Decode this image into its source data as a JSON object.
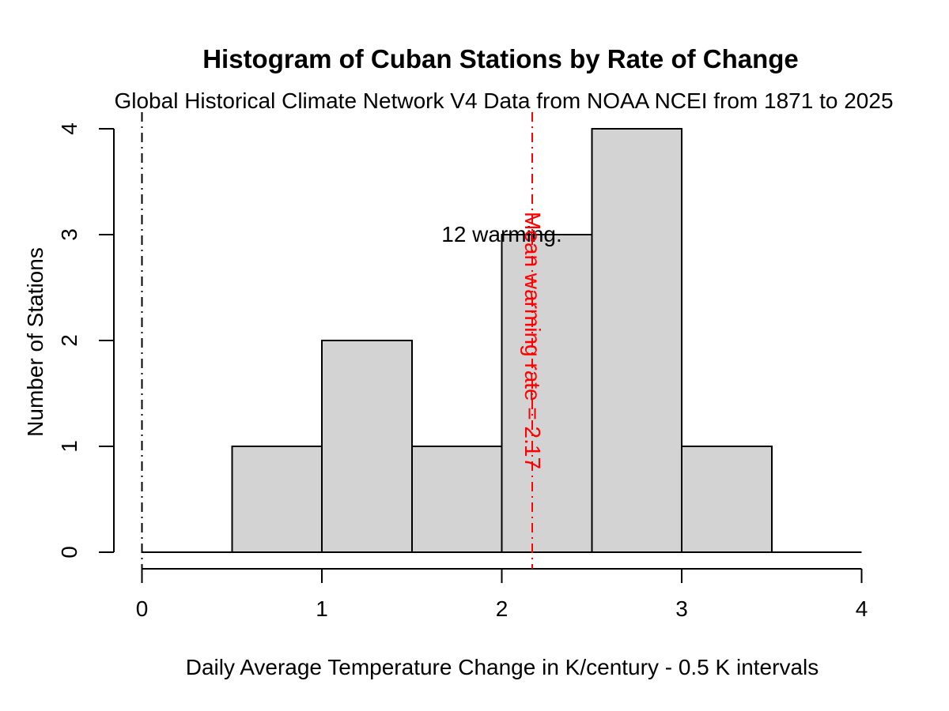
{
  "chart_data": {
    "type": "bar",
    "subtype": "histogram",
    "title": "Histogram of Cuban Stations by Rate of Change",
    "subtitle": "Global Historical Climate Network V4 Data from NOAA NCEI from 1871 to 2025",
    "xlabel": "Daily Average Temperature Change in K/century - 0.5 K intervals",
    "ylabel": "Number of Stations",
    "xlim": [
      0,
      4
    ],
    "ylim": [
      0,
      4
    ],
    "x_ticks": [
      0,
      1,
      2,
      3,
      4
    ],
    "y_ticks": [
      0,
      1,
      2,
      3,
      4
    ],
    "bin_start": 0.5,
    "bin_width": 0.5,
    "bin_edges": [
      0.5,
      1.0,
      1.5,
      2.0,
      2.5,
      3.0,
      3.5
    ],
    "counts": [
      1,
      2,
      1,
      3,
      4,
      1
    ],
    "grid": false,
    "legend": false,
    "colors": {
      "bar_fill": "#d3d3d3",
      "bar_border": "#000000",
      "axis": "#000000",
      "mean_line": "#ff0000",
      "zero_line": "#000000"
    },
    "reference_lines": [
      {
        "x": 0,
        "color": "#000000",
        "style": "dotdash"
      },
      {
        "x": 2.17,
        "color": "#ff0000",
        "style": "dotdash"
      }
    ],
    "annotations": [
      {
        "text": "12 warming.",
        "x": 2,
        "y": 3,
        "color": "#000000",
        "rotation": 0
      },
      {
        "text": "Mean warming rate = 2.17",
        "x": 2.17,
        "y": 2,
        "color": "#ff0000",
        "rotation": 90
      }
    ]
  }
}
